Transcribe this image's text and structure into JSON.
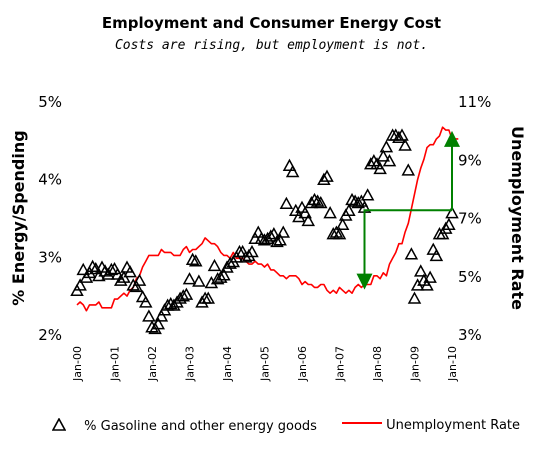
{
  "chart_data": {
    "type": "line",
    "title": "Employment and Consumer Energy Cost",
    "subtitle": "Costs are rising, but employment is not.",
    "y_left_label": "% Energy/Spending",
    "y_right_label": "Unemployment Rate",
    "y_left_lim": [
      2,
      5
    ],
    "y_right_lim": [
      3,
      11
    ],
    "y_left_ticks": [
      "2%",
      "3%",
      "4%",
      "5%"
    ],
    "y_right_ticks": [
      "3%",
      "5%",
      "7%",
      "9%",
      "11%"
    ],
    "x_ticks": [
      "Jan-00",
      "Jan-01",
      "Jan-02",
      "Jan-03",
      "Jan-04",
      "Jan-05",
      "Jan-06",
      "Jan-07",
      "Jan-08",
      "Jan-09",
      "Jan-10"
    ],
    "legend_position": "bottom",
    "series": [
      {
        "name": "% Gasoline and other energy goods",
        "axis": "left",
        "marker": "triangle",
        "color": "#000000",
        "points": [
          [
            "2000-01",
            2.55
          ],
          [
            "2000-02",
            2.62
          ],
          [
            "2000-03",
            2.82
          ],
          [
            "2000-04",
            2.72
          ],
          [
            "2000-05",
            2.78
          ],
          [
            "2000-06",
            2.86
          ],
          [
            "2000-07",
            2.83
          ],
          [
            "2000-08",
            2.74
          ],
          [
            "2000-09",
            2.85
          ],
          [
            "2000-10",
            2.8
          ],
          [
            "2000-11",
            2.76
          ],
          [
            "2000-12",
            2.82
          ],
          [
            "2001-01",
            2.83
          ],
          [
            "2001-02",
            2.76
          ],
          [
            "2001-03",
            2.68
          ],
          [
            "2001-04",
            2.72
          ],
          [
            "2001-05",
            2.85
          ],
          [
            "2001-06",
            2.79
          ],
          [
            "2001-07",
            2.62
          ],
          [
            "2001-08",
            2.6
          ],
          [
            "2001-09",
            2.68
          ],
          [
            "2001-10",
            2.47
          ],
          [
            "2001-11",
            2.4
          ],
          [
            "2001-12",
            2.22
          ],
          [
            "2002-01",
            2.08
          ],
          [
            "2002-02",
            2.06
          ],
          [
            "2002-03",
            2.12
          ],
          [
            "2002-04",
            2.22
          ],
          [
            "2002-05",
            2.3
          ],
          [
            "2002-06",
            2.36
          ],
          [
            "2002-07",
            2.38
          ],
          [
            "2002-08",
            2.36
          ],
          [
            "2002-09",
            2.4
          ],
          [
            "2002-10",
            2.45
          ],
          [
            "2002-11",
            2.48
          ],
          [
            "2002-12",
            2.5
          ],
          [
            "2003-01",
            2.7
          ],
          [
            "2003-02",
            2.95
          ],
          [
            "2003-03",
            2.93
          ],
          [
            "2003-04",
            2.67
          ],
          [
            "2003-05",
            2.4
          ],
          [
            "2003-06",
            2.45
          ],
          [
            "2003-07",
            2.45
          ],
          [
            "2003-08",
            2.65
          ],
          [
            "2003-09",
            2.87
          ],
          [
            "2003-10",
            2.7
          ],
          [
            "2003-11",
            2.72
          ],
          [
            "2003-12",
            2.75
          ],
          [
            "2004-01",
            2.85
          ],
          [
            "2004-02",
            2.9
          ],
          [
            "2004-03",
            2.92
          ],
          [
            "2004-04",
            2.98
          ],
          [
            "2004-05",
            3.05
          ],
          [
            "2004-06",
            3.05
          ],
          [
            "2004-07",
            2.98
          ],
          [
            "2004-08",
            3.0
          ],
          [
            "2004-09",
            3.05
          ],
          [
            "2004-10",
            3.22
          ],
          [
            "2004-11",
            3.3
          ],
          [
            "2004-12",
            3.22
          ],
          [
            "2005-01",
            3.2
          ],
          [
            "2005-02",
            3.22
          ],
          [
            "2005-03",
            3.25
          ],
          [
            "2005-04",
            3.28
          ],
          [
            "2005-05",
            3.18
          ],
          [
            "2005-06",
            3.2
          ],
          [
            "2005-07",
            3.3
          ],
          [
            "2005-08",
            3.67
          ],
          [
            "2005-09",
            4.16
          ],
          [
            "2005-10",
            4.08
          ],
          [
            "2005-11",
            3.58
          ],
          [
            "2005-12",
            3.5
          ],
          [
            "2006-01",
            3.62
          ],
          [
            "2006-02",
            3.55
          ],
          [
            "2006-03",
            3.45
          ],
          [
            "2006-04",
            3.68
          ],
          [
            "2006-05",
            3.72
          ],
          [
            "2006-06",
            3.7
          ],
          [
            "2006-07",
            3.68
          ],
          [
            "2006-08",
            3.98
          ],
          [
            "2006-09",
            4.02
          ],
          [
            "2006-10",
            3.55
          ],
          [
            "2006-11",
            3.28
          ],
          [
            "2006-12",
            3.3
          ],
          [
            "2007-01",
            3.28
          ],
          [
            "2007-02",
            3.4
          ],
          [
            "2007-03",
            3.52
          ],
          [
            "2007-04",
            3.58
          ],
          [
            "2007-05",
            3.72
          ],
          [
            "2007-06",
            3.7
          ],
          [
            "2007-07",
            3.68
          ],
          [
            "2007-08",
            3.7
          ],
          [
            "2007-09",
            3.62
          ],
          [
            "2007-10",
            3.78
          ],
          [
            "2007-11",
            4.18
          ],
          [
            "2007-12",
            4.22
          ],
          [
            "2008-01",
            4.18
          ],
          [
            "2008-02",
            4.12
          ],
          [
            "2008-03",
            4.28
          ],
          [
            "2008-04",
            4.4
          ],
          [
            "2008-05",
            4.22
          ],
          [
            "2008-06",
            4.55
          ],
          [
            "2008-07",
            4.55
          ],
          [
            "2008-08",
            4.52
          ],
          [
            "2008-09",
            4.55
          ],
          [
            "2008-10",
            4.42
          ],
          [
            "2008-11",
            4.1
          ],
          [
            "2008-12",
            3.02
          ],
          [
            "2009-01",
            2.45
          ],
          [
            "2009-02",
            2.62
          ],
          [
            "2009-03",
            2.8
          ],
          [
            "2009-04",
            2.68
          ],
          [
            "2009-05",
            2.62
          ],
          [
            "2009-06",
            2.72
          ],
          [
            "2009-07",
            3.08
          ],
          [
            "2009-08",
            3.0
          ],
          [
            "2009-09",
            3.28
          ],
          [
            "2009-10",
            3.28
          ],
          [
            "2009-11",
            3.35
          ],
          [
            "2009-12",
            3.4
          ],
          [
            "2010-01",
            3.55
          ]
        ]
      },
      {
        "name": "Unemployment Rate",
        "axis": "right",
        "color": "#ff0000",
        "points": [
          [
            "2000-01",
            4.0
          ],
          [
            "2000-02",
            4.1
          ],
          [
            "2000-03",
            4.0
          ],
          [
            "2000-04",
            3.8
          ],
          [
            "2000-05",
            4.0
          ],
          [
            "2000-06",
            4.0
          ],
          [
            "2000-07",
            4.0
          ],
          [
            "2000-08",
            4.1
          ],
          [
            "2000-09",
            3.9
          ],
          [
            "2000-10",
            3.9
          ],
          [
            "2000-11",
            3.9
          ],
          [
            "2000-12",
            3.9
          ],
          [
            "2001-01",
            4.2
          ],
          [
            "2001-02",
            4.2
          ],
          [
            "2001-03",
            4.3
          ],
          [
            "2001-04",
            4.4
          ],
          [
            "2001-05",
            4.3
          ],
          [
            "2001-06",
            4.5
          ],
          [
            "2001-07",
            4.6
          ],
          [
            "2001-08",
            4.9
          ],
          [
            "2001-09",
            5.0
          ],
          [
            "2001-10",
            5.3
          ],
          [
            "2001-11",
            5.5
          ],
          [
            "2001-12",
            5.7
          ],
          [
            "2002-01",
            5.7
          ],
          [
            "2002-02",
            5.7
          ],
          [
            "2002-03",
            5.7
          ],
          [
            "2002-04",
            5.9
          ],
          [
            "2002-05",
            5.8
          ],
          [
            "2002-06",
            5.8
          ],
          [
            "2002-07",
            5.8
          ],
          [
            "2002-08",
            5.7
          ],
          [
            "2002-09",
            5.7
          ],
          [
            "2002-10",
            5.7
          ],
          [
            "2002-11",
            5.9
          ],
          [
            "2002-12",
            6.0
          ],
          [
            "2003-01",
            5.8
          ],
          [
            "2003-02",
            5.9
          ],
          [
            "2003-03",
            5.9
          ],
          [
            "2003-04",
            6.0
          ],
          [
            "2003-05",
            6.1
          ],
          [
            "2003-06",
            6.3
          ],
          [
            "2003-07",
            6.2
          ],
          [
            "2003-08",
            6.1
          ],
          [
            "2003-09",
            6.1
          ],
          [
            "2003-10",
            6.0
          ],
          [
            "2003-11",
            5.8
          ],
          [
            "2003-12",
            5.7
          ],
          [
            "2004-01",
            5.7
          ],
          [
            "2004-02",
            5.6
          ],
          [
            "2004-03",
            5.8
          ],
          [
            "2004-04",
            5.6
          ],
          [
            "2004-05",
            5.6
          ],
          [
            "2004-06",
            5.6
          ],
          [
            "2004-07",
            5.5
          ],
          [
            "2004-08",
            5.4
          ],
          [
            "2004-09",
            5.4
          ],
          [
            "2004-10",
            5.5
          ],
          [
            "2004-11",
            5.4
          ],
          [
            "2004-12",
            5.4
          ],
          [
            "2005-01",
            5.3
          ],
          [
            "2005-02",
            5.4
          ],
          [
            "2005-03",
            5.2
          ],
          [
            "2005-04",
            5.2
          ],
          [
            "2005-05",
            5.1
          ],
          [
            "2005-06",
            5.0
          ],
          [
            "2005-07",
            5.0
          ],
          [
            "2005-08",
            4.9
          ],
          [
            "2005-09",
            5.0
          ],
          [
            "2005-10",
            5.0
          ],
          [
            "2005-11",
            5.0
          ],
          [
            "2005-12",
            4.9
          ],
          [
            "2006-01",
            4.7
          ],
          [
            "2006-02",
            4.8
          ],
          [
            "2006-03",
            4.7
          ],
          [
            "2006-04",
            4.7
          ],
          [
            "2006-05",
            4.6
          ],
          [
            "2006-06",
            4.6
          ],
          [
            "2006-07",
            4.7
          ],
          [
            "2006-08",
            4.7
          ],
          [
            "2006-09",
            4.5
          ],
          [
            "2006-10",
            4.4
          ],
          [
            "2006-11",
            4.5
          ],
          [
            "2006-12",
            4.4
          ],
          [
            "2007-01",
            4.6
          ],
          [
            "2007-02",
            4.5
          ],
          [
            "2007-03",
            4.4
          ],
          [
            "2007-04",
            4.5
          ],
          [
            "2007-05",
            4.4
          ],
          [
            "2007-06",
            4.6
          ],
          [
            "2007-07",
            4.7
          ],
          [
            "2007-08",
            4.6
          ],
          [
            "2007-09",
            4.7
          ],
          [
            "2007-10",
            4.7
          ],
          [
            "2007-11",
            4.7
          ],
          [
            "2007-12",
            5.0
          ],
          [
            "2008-01",
            5.0
          ],
          [
            "2008-02",
            4.9
          ],
          [
            "2008-03",
            5.1
          ],
          [
            "2008-04",
            5.0
          ],
          [
            "2008-05",
            5.4
          ],
          [
            "2008-06",
            5.6
          ],
          [
            "2008-07",
            5.8
          ],
          [
            "2008-08",
            6.1
          ],
          [
            "2008-09",
            6.1
          ],
          [
            "2008-10",
            6.5
          ],
          [
            "2008-11",
            6.8
          ],
          [
            "2008-12",
            7.3
          ],
          [
            "2009-01",
            7.8
          ],
          [
            "2009-02",
            8.3
          ],
          [
            "2009-03",
            8.7
          ],
          [
            "2009-04",
            9.0
          ],
          [
            "2009-05",
            9.4
          ],
          [
            "2009-06",
            9.5
          ],
          [
            "2009-07",
            9.5
          ],
          [
            "2009-08",
            9.7
          ],
          [
            "2009-09",
            9.8
          ],
          [
            "2009-10",
            10.1
          ],
          [
            "2009-11",
            10.0
          ],
          [
            "2009-12",
            10.0
          ],
          [
            "2010-01",
            9.7
          ],
          [
            "2010-02",
            9.7
          ],
          [
            "2010-03",
            9.7
          ]
        ]
      }
    ],
    "annotations": [
      {
        "type": "arrow",
        "color": "#008000",
        "axis": "right",
        "shape": "horizontal-line-then-down-arrow",
        "from": [
          "2010-01",
          7.25
        ],
        "corner": [
          "2007-09",
          7.25
        ],
        "to": [
          "2007-09",
          4.8
        ]
      },
      {
        "type": "arrow",
        "color": "#008000",
        "axis": "right",
        "shape": "vertical-up-arrow",
        "from": [
          "2010-01",
          7.25
        ],
        "to": [
          "2010-01",
          9.7
        ]
      }
    ]
  }
}
